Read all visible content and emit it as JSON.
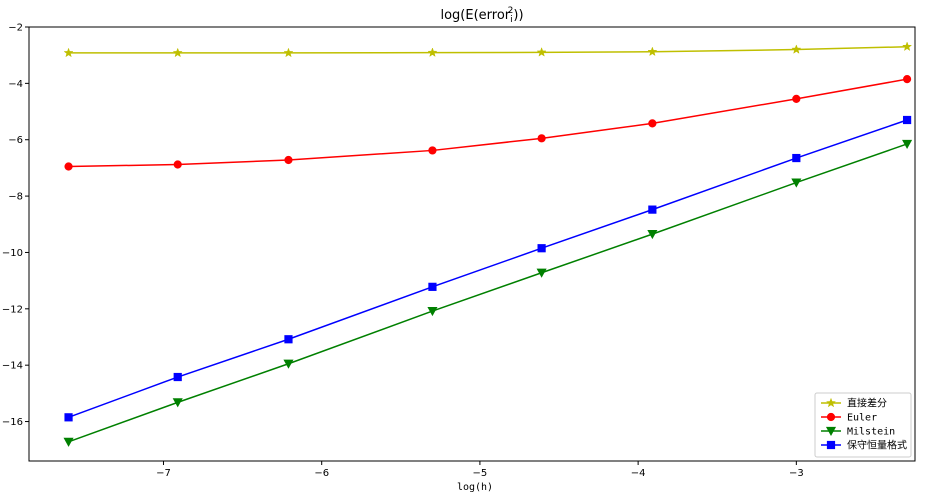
{
  "chart_data": {
    "type": "line",
    "title": "log(E(error",
    "title_sup": "2",
    "title_sub": "i",
    "title_end": "))",
    "xlabel": "log(h)",
    "ylabel": "",
    "xlim": [
      -7.85,
      -2.25
    ],
    "ylim": [
      -17.4,
      -2.0
    ],
    "xticks": [
      -7,
      -6,
      -5,
      -4,
      -3
    ],
    "yticks": [
      -16,
      -14,
      -12,
      -10,
      -8,
      -6,
      -4,
      -2
    ],
    "xtick_labels": [
      "−7",
      "−6",
      "−5",
      "−4",
      "−3"
    ],
    "ytick_labels": [
      "−16",
      "−14",
      "−12",
      "−10",
      "−8",
      "−6",
      "−4",
      "−2"
    ],
    "grid": false,
    "legend_position": "lower-right",
    "x": [
      -7.6,
      -6.91,
      -6.21,
      -5.3,
      -4.61,
      -3.91,
      -3.0,
      -2.3
    ],
    "series": [
      {
        "name": "直接差分",
        "color": "#bfbf00",
        "marker": "star",
        "values": [
          -2.92,
          -2.92,
          -2.92,
          -2.91,
          -2.9,
          -2.88,
          -2.8,
          -2.7
        ]
      },
      {
        "name": "Euler",
        "color": "#ff0000",
        "marker": "circle",
        "values": [
          -6.95,
          -6.88,
          -6.72,
          -6.38,
          -5.95,
          -5.42,
          -4.55,
          -3.85
        ]
      },
      {
        "name": "Milstein",
        "color": "#008000",
        "marker": "triangle-down",
        "values": [
          -16.72,
          -15.32,
          -13.95,
          -12.08,
          -10.72,
          -9.35,
          -7.52,
          -6.15
        ]
      },
      {
        "name": "保守恒量格式",
        "color": "#0000ff",
        "marker": "square",
        "values": [
          -15.85,
          -14.42,
          -13.08,
          -11.22,
          -9.85,
          -8.48,
          -6.65,
          -5.3
        ]
      }
    ]
  }
}
